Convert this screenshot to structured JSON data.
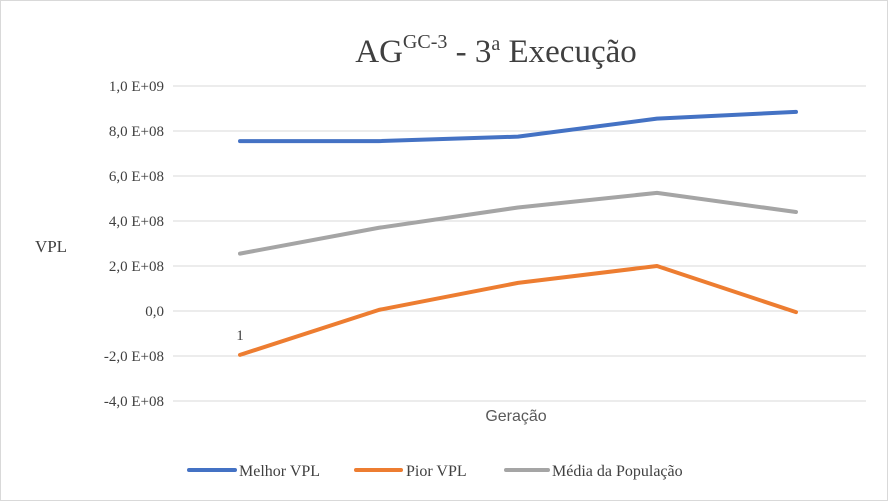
{
  "chart_data": {
    "type": "line",
    "title": {
      "main": "AG",
      "superscript": "GC-3",
      "separator": " - 3",
      "ordinal": "a",
      "rest": " Execução"
    },
    "xlabel": "Geração",
    "ylabel": "VPL",
    "x": [
      1,
      2,
      3,
      4,
      5
    ],
    "x_tick_labels": [
      "1"
    ],
    "y_ticks": [
      1000000000,
      800000000,
      600000000,
      400000000,
      200000000,
      0,
      -200000000,
      -400000000
    ],
    "y_tick_labels": [
      "1,0 E+09",
      "8,0 E+08",
      "6,0 E+08",
      "4,0 E+08",
      "2,0 E+08",
      "0,0",
      "-2,0 E+08",
      "-4,0 E+08"
    ],
    "ylim": [
      -400000000,
      1000000000
    ],
    "grid": true,
    "legend_position": "bottom",
    "series": [
      {
        "name": "Melhor VPL",
        "color": "#4472c4",
        "values": [
          755000000,
          755000000,
          775000000,
          855000000,
          885000000
        ]
      },
      {
        "name": "Pior VPL",
        "color": "#ed7d31",
        "values": [
          -195000000,
          5000000,
          125000000,
          200000000,
          -5000000
        ]
      },
      {
        "name": "Média da População",
        "color": "#a5a5a5",
        "values": [
          255000000,
          370000000,
          460000000,
          525000000,
          440000000
        ]
      }
    ]
  }
}
